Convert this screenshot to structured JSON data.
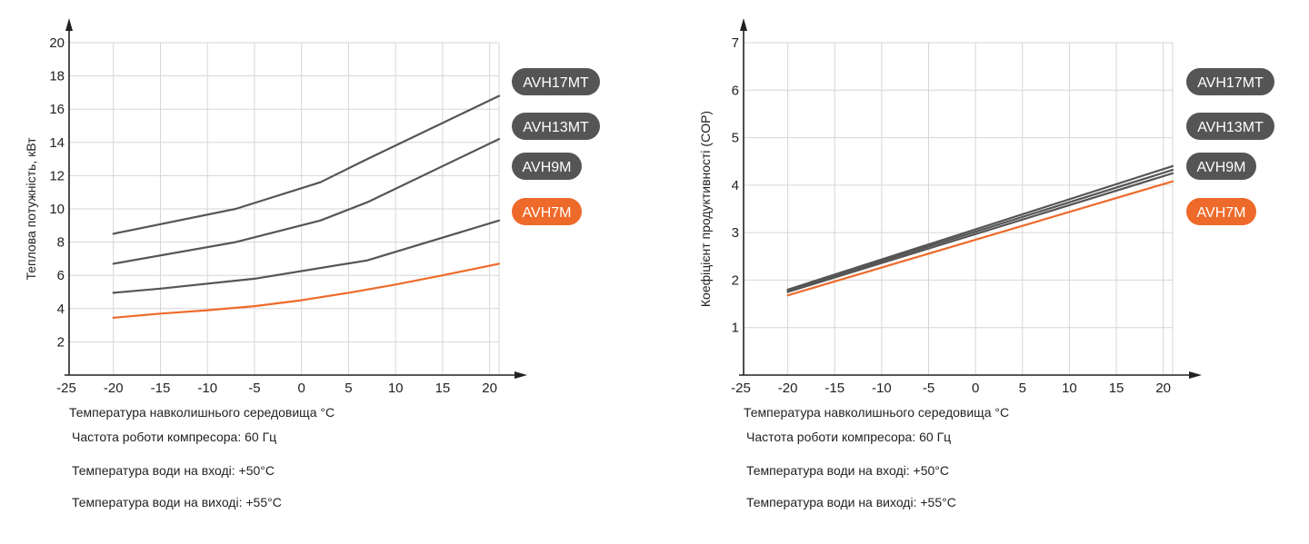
{
  "notes": {
    "frequency": "Частота роботи компресора: 60 Гц",
    "water_in": "Температура води на вході: +50°C",
    "water_out": "Температура води на виході: +55°C"
  },
  "chart_data": [
    {
      "type": "line",
      "xlabel": "Температура навколишнього середовища °C",
      "ylabel": "Теплова потужність, кВт",
      "xlim": [
        -25,
        21
      ],
      "ylim": [
        0,
        20
      ],
      "x_ticks": [
        -25,
        -20,
        -15,
        -10,
        -5,
        0,
        5,
        10,
        15,
        20
      ],
      "y_ticks": [
        2,
        4,
        6,
        8,
        10,
        12,
        14,
        16,
        18,
        20
      ],
      "grid": true,
      "legend_position": "right",
      "series": [
        {
          "name": "AVH17MT",
          "color": "#555555",
          "x": [
            -20,
            -7,
            2,
            7,
            21
          ],
          "y": [
            8.5,
            10.0,
            11.6,
            13.0,
            16.8
          ]
        },
        {
          "name": "AVH13MT",
          "color": "#555555",
          "x": [
            -20,
            -7,
            2,
            7,
            21
          ],
          "y": [
            6.7,
            8.0,
            9.3,
            10.4,
            14.2
          ]
        },
        {
          "name": "AVH9M",
          "color": "#555555",
          "x": [
            -20,
            -15,
            -5,
            7,
            21
          ],
          "y": [
            4.95,
            5.2,
            5.8,
            6.9,
            9.3
          ]
        },
        {
          "name": "AVH7M",
          "color": "#ee6a2a",
          "x": [
            -20,
            -15,
            -10,
            -5,
            0,
            5,
            10,
            15,
            21
          ],
          "y": [
            3.45,
            3.7,
            3.9,
            4.15,
            4.5,
            4.95,
            5.45,
            6.0,
            6.7
          ]
        }
      ]
    },
    {
      "type": "line",
      "xlabel": "Температура навколишнього середовища °C",
      "ylabel": "Коефіцієнт продуктивності (COP)",
      "xlim": [
        -25,
        21
      ],
      "ylim": [
        0,
        7
      ],
      "x_ticks": [
        -25,
        -20,
        -15,
        -10,
        -5,
        0,
        5,
        10,
        15,
        20
      ],
      "y_ticks": [
        1,
        2,
        3,
        4,
        5,
        6,
        7
      ],
      "grid": true,
      "legend_position": "right",
      "series": [
        {
          "name": "AVH17MT",
          "color": "#555555",
          "x": [
            -20,
            21
          ],
          "y": [
            1.8,
            4.4
          ]
        },
        {
          "name": "AVH13MT",
          "color": "#555555",
          "x": [
            -20,
            21
          ],
          "y": [
            1.78,
            4.32
          ]
        },
        {
          "name": "AVH9M",
          "color": "#555555",
          "x": [
            -20,
            21
          ],
          "y": [
            1.75,
            4.25
          ]
        },
        {
          "name": "AVH7M",
          "color": "#ee6a2a",
          "x": [
            -20,
            21
          ],
          "y": [
            1.68,
            4.08
          ]
        }
      ]
    }
  ]
}
